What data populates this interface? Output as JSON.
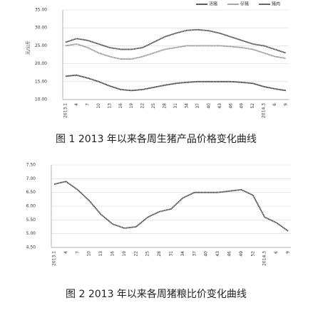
{
  "chart_data": [
    {
      "type": "line",
      "title": "图 1  2013 年以来各周生猪产品价格变化曲线",
      "ylabel": "元/公斤",
      "categories": [
        "2013.1",
        "4",
        "7",
        "10",
        "13",
        "16",
        "19",
        "22",
        "25",
        "28",
        "31",
        "34",
        "37",
        "40",
        "43",
        "46",
        "49",
        "52",
        "2014.3",
        "6",
        "9"
      ],
      "series": [
        {
          "name": "活猪",
          "color": "#222222",
          "values": [
            16.5,
            16.8,
            16,
            15,
            13.8,
            12.8,
            12.5,
            12.8,
            13.4,
            14,
            14.5,
            14.8,
            15,
            15,
            15,
            15,
            14.8,
            14.5,
            13.6,
            13,
            12.5
          ]
        },
        {
          "name": "仔猪",
          "color": "#888888",
          "values": [
            25,
            25.5,
            24.5,
            23,
            22,
            21.3,
            21.3,
            22,
            23,
            24,
            24.5,
            25,
            25,
            25,
            25,
            24.8,
            24.5,
            24,
            23,
            22,
            21.5
          ]
        },
        {
          "name": "猪肉",
          "color": "#333333",
          "values": [
            26,
            27,
            26.5,
            25.5,
            24.5,
            24,
            24,
            24.5,
            26,
            27.5,
            28.5,
            29.3,
            29.5,
            29.2,
            28.5,
            27.5,
            26.5,
            25.5,
            25,
            24,
            23
          ]
        }
      ],
      "ylim": [
        10,
        35
      ],
      "yticks": [
        {
          "value": 10,
          "label": "10.00"
        },
        {
          "value": 15,
          "label": "15.00"
        },
        {
          "value": 20,
          "label": "20.00"
        },
        {
          "value": 25,
          "label": "25.00"
        },
        {
          "value": 30,
          "label": "30.00"
        },
        {
          "value": 35,
          "label": "35.00"
        }
      ],
      "grid": true,
      "legend": "top-right"
    },
    {
      "type": "line",
      "title": "图 2  2013 年以来各周猪粮比价变化曲线",
      "categories": [
        "2013.1",
        "4",
        "7",
        "10",
        "13",
        "16",
        "19",
        "22",
        "25",
        "28",
        "31",
        "34",
        "37",
        "40",
        "43",
        "46",
        "49",
        "52",
        "2014.3",
        "6",
        "9"
      ],
      "color": "#333333",
      "values": [
        6.8,
        6.9,
        6.6,
        6.2,
        5.7,
        5.35,
        5.2,
        5.25,
        5.6,
        5.8,
        5.9,
        6.3,
        6.5,
        6.5,
        6.5,
        6.55,
        6.6,
        6.4,
        5.6,
        5.4,
        5.1
      ],
      "ylim": [
        4.5,
        7.5
      ],
      "yticks": [
        {
          "value": 4.5,
          "label": "4.50"
        },
        {
          "value": 5,
          "label": "5.00"
        },
        {
          "value": 5.5,
          "label": "5.50"
        },
        {
          "value": 6,
          "label": "6.00"
        },
        {
          "value": 6.5,
          "label": "6.50"
        },
        {
          "value": 7,
          "label": "7.00"
        },
        {
          "value": 7.5,
          "label": "7.50"
        }
      ],
      "grid": true
    }
  ]
}
